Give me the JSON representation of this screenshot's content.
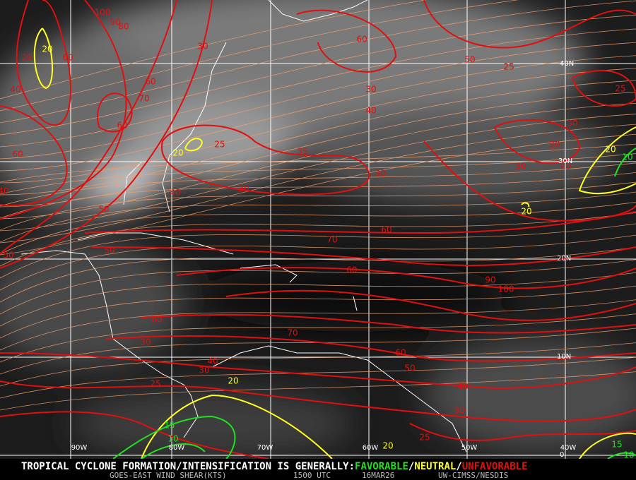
{
  "grid": {
    "lon_labels": [
      "90W",
      "80W",
      "70W",
      "60W",
      "50W",
      "40W"
    ],
    "lat_labels": [
      "40N",
      "30N",
      "20N",
      "10N",
      "0"
    ]
  },
  "contour_labels": {
    "red": [
      100,
      90,
      80,
      25,
      60,
      40,
      30,
      60,
      60,
      70,
      60,
      25,
      35,
      30,
      40,
      50,
      60,
      25,
      40,
      30,
      25,
      20,
      30,
      30,
      30,
      40,
      50,
      40,
      50,
      60,
      70,
      50,
      60,
      90,
      100,
      60,
      70,
      30,
      40,
      60,
      50,
      30,
      25,
      40,
      30,
      25
    ],
    "yellow": [
      20,
      20,
      20,
      20,
      20,
      20
    ],
    "green": [
      15,
      10,
      15,
      10,
      10
    ]
  },
  "footer": {
    "status_prefix": "TROPICAL CYCLONE FORMATION/INTENSIFICATION IS GENERALLY:",
    "favorable": "FAVORABLE",
    "separator_1": "/",
    "neutral": "NEUTRAL",
    "separator_2": "/",
    "unfavorable": "UNFAVORABLE",
    "product": "GOES-EAST WIND SHEAR(KTS)",
    "time": "1500 UTC",
    "date": "16MAR26",
    "source": "UW-CIMSS/NESDIS"
  }
}
